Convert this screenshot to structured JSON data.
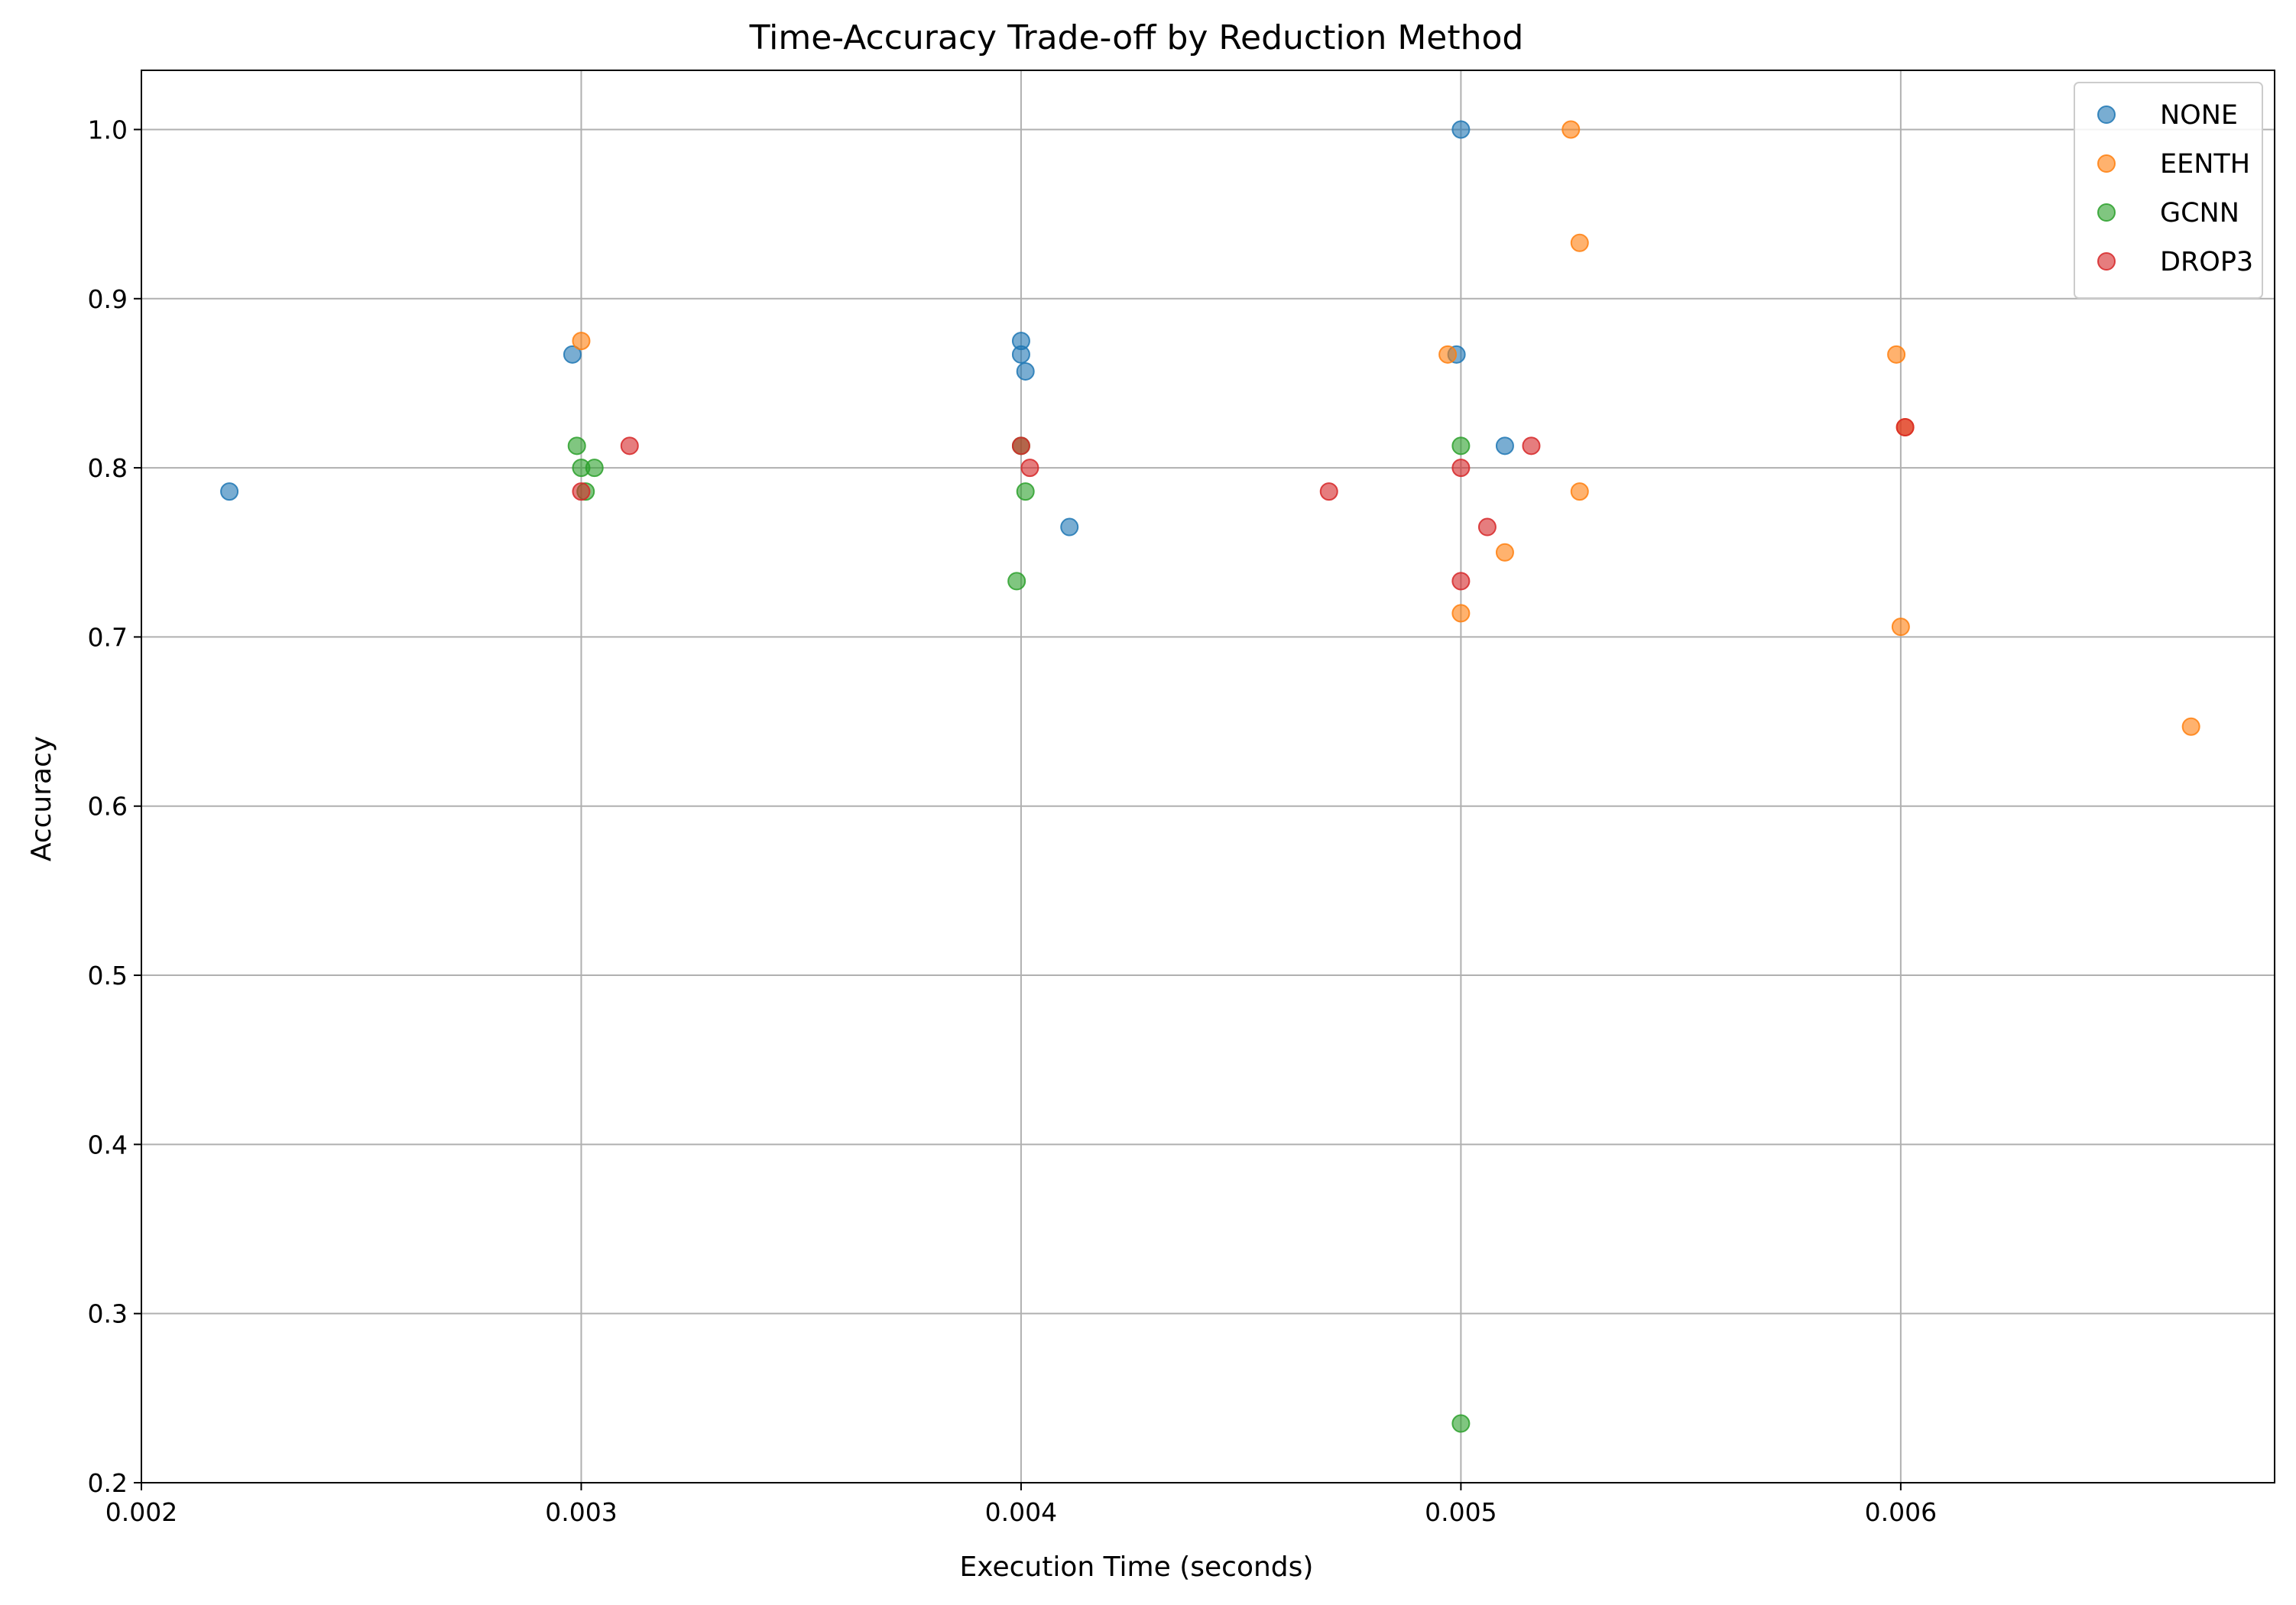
{
  "chart_data": {
    "type": "scatter",
    "title": "Time-Accuracy Trade-off by Reduction Method",
    "xlabel": "Execution Time (seconds)",
    "ylabel": "Accuracy",
    "xlim": [
      0.002,
      0.00685
    ],
    "ylim": [
      0.2,
      1.035
    ],
    "xticks": [
      0.002,
      0.003,
      0.004,
      0.005,
      0.006
    ],
    "xtick_labels": [
      "0.002",
      "0.003",
      "0.004",
      "0.005",
      "0.006"
    ],
    "yticks": [
      0.2,
      0.3,
      0.4,
      0.5,
      0.6,
      0.7,
      0.8,
      0.9,
      1.0
    ],
    "ytick_labels": [
      "0.2",
      "0.3",
      "0.4",
      "0.5",
      "0.6",
      "0.7",
      "0.8",
      "0.9",
      "1.0"
    ],
    "grid": true,
    "legend_position": "top-right",
    "marker_alpha": 0.6,
    "series": [
      {
        "name": "NONE",
        "color": "#1f77b4",
        "points": [
          [
            0.0022,
            0.786
          ],
          [
            0.00298,
            0.867
          ],
          [
            0.004,
            0.875
          ],
          [
            0.004,
            0.867
          ],
          [
            0.00401,
            0.857
          ],
          [
            0.00411,
            0.765
          ],
          [
            0.005,
            1.0
          ],
          [
            0.00499,
            0.867
          ],
          [
            0.0051,
            0.813
          ]
        ]
      },
      {
        "name": "EENTH",
        "color": "#ff7f0e",
        "points": [
          [
            0.003,
            0.875
          ],
          [
            0.00497,
            0.867
          ],
          [
            0.005,
            0.714
          ],
          [
            0.0051,
            0.75
          ],
          [
            0.00525,
            1.0
          ],
          [
            0.00527,
            0.933
          ],
          [
            0.00527,
            0.786
          ],
          [
            0.00599,
            0.867
          ],
          [
            0.006,
            0.706
          ],
          [
            0.00601,
            0.824
          ],
          [
            0.00666,
            0.647
          ]
        ]
      },
      {
        "name": "GCNN",
        "color": "#2ca02c",
        "points": [
          [
            0.00299,
            0.813
          ],
          [
            0.003,
            0.8
          ],
          [
            0.00301,
            0.786
          ],
          [
            0.00303,
            0.8
          ],
          [
            0.00399,
            0.733
          ],
          [
            0.00401,
            0.786
          ],
          [
            0.004,
            0.813
          ],
          [
            0.005,
            0.813
          ],
          [
            0.005,
            0.235
          ]
        ]
      },
      {
        "name": "DROP3",
        "color": "#d62728",
        "points": [
          [
            0.003,
            0.786
          ],
          [
            0.00311,
            0.813
          ],
          [
            0.004,
            0.813
          ],
          [
            0.00402,
            0.8
          ],
          [
            0.0047,
            0.786
          ],
          [
            0.005,
            0.8
          ],
          [
            0.005,
            0.733
          ],
          [
            0.00506,
            0.765
          ],
          [
            0.00516,
            0.813
          ],
          [
            0.00601,
            0.824
          ]
        ]
      }
    ]
  }
}
